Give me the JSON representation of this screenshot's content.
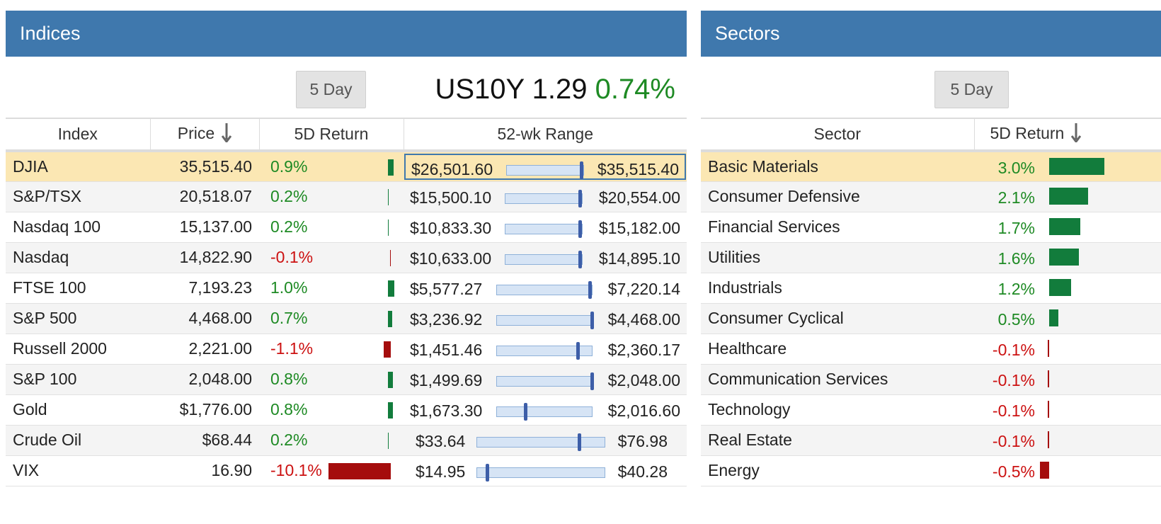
{
  "colors": {
    "header_bg": "#3f78ad",
    "positive_text": "#1e8a24",
    "negative_text": "#cc1111",
    "positive_bar": "#127c3c",
    "negative_bar": "#a50d0d",
    "selected_row": "#fbe7b3",
    "range_track": "#d6e4f5",
    "range_marker": "#3d5ea8"
  },
  "indices": {
    "title": "Indices",
    "period_button": "5 Day",
    "treasury": {
      "label": "US10Y",
      "value": "1.29",
      "change": "0.74%"
    },
    "columns": {
      "index": "Index",
      "price": "Price",
      "return": "5D Return",
      "range": "52-wk Range"
    },
    "rows": [
      {
        "name": "DJIA",
        "price": "35,515.40",
        "ret": "0.9%",
        "ret_value": 0.9,
        "low": "$26,501.60",
        "high": "$35,515.40",
        "position": 0.97,
        "selected": true
      },
      {
        "name": "S&P/TSX",
        "price": "20,518.07",
        "ret": "0.2%",
        "ret_value": 0.2,
        "low": "$15,500.10",
        "high": "$20,554.00",
        "position": 0.97
      },
      {
        "name": "Nasdaq 100",
        "price": "15,137.00",
        "ret": "0.2%",
        "ret_value": 0.2,
        "low": "$10,833.30",
        "high": "$15,182.00",
        "position": 0.97
      },
      {
        "name": "Nasdaq",
        "price": "14,822.90",
        "ret": "-0.1%",
        "ret_value": -0.1,
        "low": "$10,633.00",
        "high": "$14,895.10",
        "position": 0.97
      },
      {
        "name": "FTSE 100",
        "price": "7,193.23",
        "ret": "1.0%",
        "ret_value": 1.0,
        "low": "$5,577.27",
        "high": "$7,220.14",
        "position": 0.98
      },
      {
        "name": "S&P 500",
        "price": "4,468.00",
        "ret": "0.7%",
        "ret_value": 0.7,
        "low": "$3,236.92",
        "high": "$4,468.00",
        "position": 1.0
      },
      {
        "name": "Russell 2000",
        "price": "2,221.00",
        "ret": "-1.1%",
        "ret_value": -1.1,
        "low": "$1,451.46",
        "high": "$2,360.17",
        "position": 0.85
      },
      {
        "name": "S&P 100",
        "price": "2,048.00",
        "ret": "0.8%",
        "ret_value": 0.8,
        "low": "$1,499.69",
        "high": "$2,048.00",
        "position": 1.0
      },
      {
        "name": "Gold",
        "price": "$1,776.00",
        "ret": "0.8%",
        "ret_value": 0.8,
        "low": "$1,673.30",
        "high": "$2,016.60",
        "position": 0.3
      },
      {
        "name": "Crude Oil",
        "price": "$68.44",
        "ret": "0.2%",
        "ret_value": 0.2,
        "low": "$33.64",
        "high": "$76.98",
        "position": 0.8
      },
      {
        "name": "VIX",
        "price": "16.90",
        "ret": "-10.1%",
        "ret_value": -10.1,
        "low": "$14.95",
        "high": "$40.28",
        "position": 0.08
      }
    ]
  },
  "sectors": {
    "title": "Sectors",
    "period_button": "5 Day",
    "columns": {
      "sector": "Sector",
      "return": "5D Return"
    },
    "rows": [
      {
        "name": "Basic Materials",
        "ret": "3.0%",
        "ret_value": 3.0,
        "selected": true
      },
      {
        "name": "Consumer Defensive",
        "ret": "2.1%",
        "ret_value": 2.1
      },
      {
        "name": "Financial Services",
        "ret": "1.7%",
        "ret_value": 1.7
      },
      {
        "name": "Utilities",
        "ret": "1.6%",
        "ret_value": 1.6
      },
      {
        "name": "Industrials",
        "ret": "1.2%",
        "ret_value": 1.2
      },
      {
        "name": "Consumer Cyclical",
        "ret": "0.5%",
        "ret_value": 0.5
      },
      {
        "name": "Healthcare",
        "ret": "-0.1%",
        "ret_value": -0.1
      },
      {
        "name": "Communication Services",
        "ret": "-0.1%",
        "ret_value": -0.1
      },
      {
        "name": "Technology",
        "ret": "-0.1%",
        "ret_value": -0.1
      },
      {
        "name": "Real Estate",
        "ret": "-0.1%",
        "ret_value": -0.1
      },
      {
        "name": "Energy",
        "ret": "-0.5%",
        "ret_value": -0.5
      }
    ]
  }
}
